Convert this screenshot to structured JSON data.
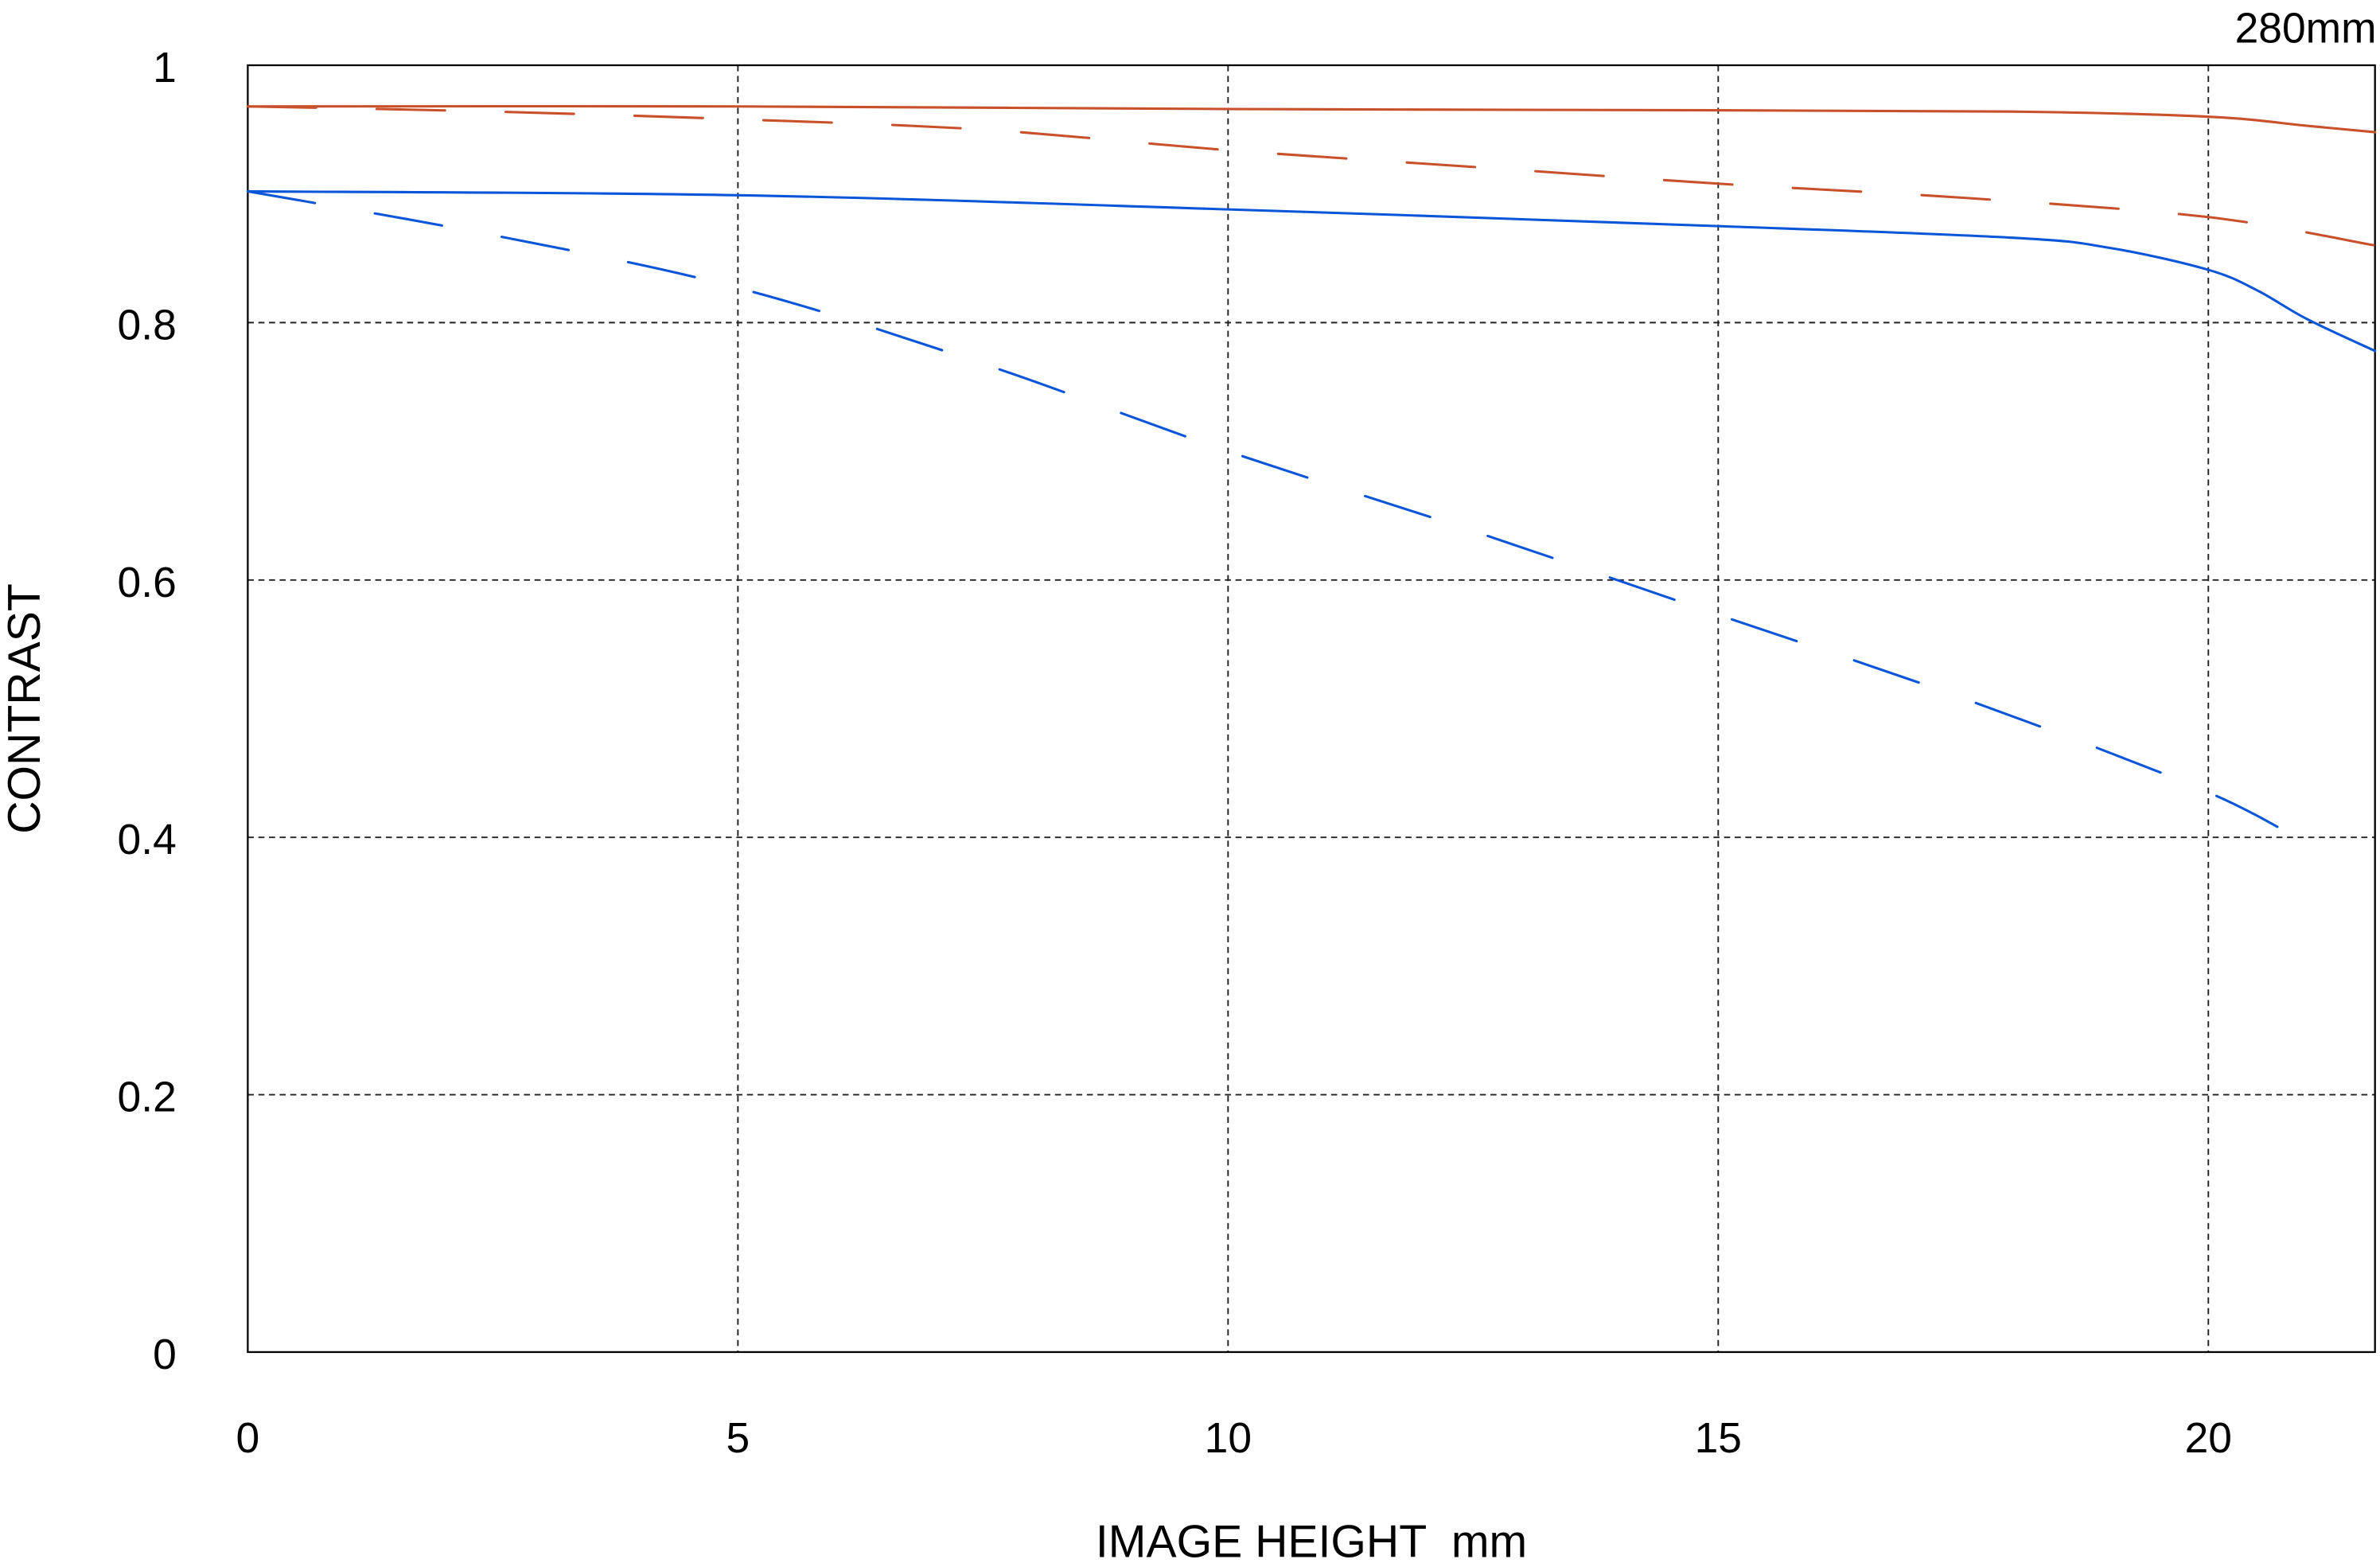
{
  "chart_data": {
    "type": "line",
    "title": "280mm",
    "xlabel": "IMAGE HEIGHT  mm",
    "ylabel": "CONTRAST",
    "xlim": [
      0,
      21.7
    ],
    "ylim": [
      0,
      1
    ],
    "xticks": [
      "0",
      "5",
      "10",
      "15",
      "20"
    ],
    "yticks": [
      "0",
      "0.2",
      "0.4",
      "0.6",
      "0.8",
      "1"
    ],
    "grid": true,
    "colors": {
      "red": "#c8502a",
      "blue": "#0a55d8"
    },
    "series": [
      {
        "color": "#c8502a",
        "style": "solid",
        "x": [
          0,
          5,
          10,
          15,
          18,
          20,
          21,
          21.7
        ],
        "y": [
          0.968,
          0.968,
          0.966,
          0.965,
          0.964,
          0.96,
          0.953,
          0.948
        ]
      },
      {
        "color": "#c8502a",
        "style": "dashed",
        "x": [
          0,
          2.5,
          5,
          7.5,
          10,
          12.5,
          15,
          17.5,
          20,
          21.7
        ],
        "y": [
          0.968,
          0.964,
          0.958,
          0.95,
          0.934,
          0.921,
          0.908,
          0.897,
          0.882,
          0.86
        ]
      },
      {
        "color": "#0a55d8",
        "style": "solid",
        "x": [
          0,
          5,
          10,
          15,
          18,
          19,
          20,
          20.5,
          21,
          21.7
        ],
        "y": [
          0.902,
          0.899,
          0.888,
          0.875,
          0.866,
          0.858,
          0.841,
          0.825,
          0.803,
          0.778
        ]
      },
      {
        "color": "#0a55d8",
        "style": "dashed",
        "x": [
          0,
          2.5,
          5,
          7.5,
          10,
          12.5,
          15,
          17.5,
          20,
          21.2
        ],
        "y": [
          0.902,
          0.868,
          0.827,
          0.768,
          0.7,
          0.638,
          0.573,
          0.508,
          0.435,
          0.386
        ]
      }
    ]
  }
}
